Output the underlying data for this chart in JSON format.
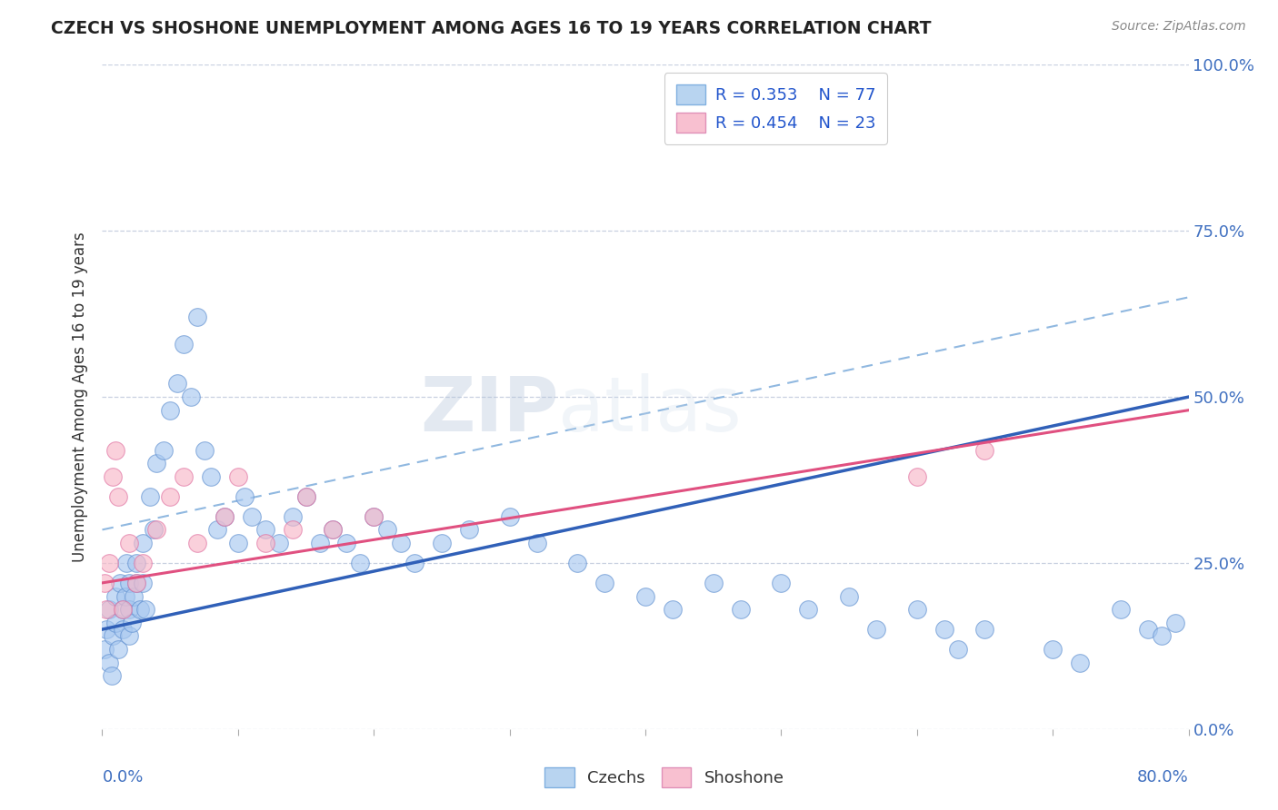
{
  "title": "CZECH VS SHOSHONE UNEMPLOYMENT AMONG AGES 16 TO 19 YEARS CORRELATION CHART",
  "source": "Source: ZipAtlas.com",
  "ylabel": "Unemployment Among Ages 16 to 19 years",
  "ytick_labels": [
    "0.0%",
    "25.0%",
    "50.0%",
    "75.0%",
    "100.0%"
  ],
  "ytick_values": [
    0,
    25,
    50,
    75,
    100
  ],
  "xlim": [
    0,
    80
  ],
  "ylim": [
    0,
    100
  ],
  "legend_r_czech": "R = 0.353",
  "legend_n_czech": "N = 77",
  "legend_r_shoshone": "R = 0.454",
  "legend_n_shoshone": "N = 23",
  "czech_dot_color": "#a8c8f0",
  "czech_dot_edge": "#6090d0",
  "shoshone_dot_color": "#f8b8c8",
  "shoshone_dot_edge": "#e070a0",
  "czech_line_color": "#3060b8",
  "shoshone_line_color": "#e05080",
  "dashed_line_color": "#90b8e0",
  "background_color": "#ffffff",
  "watermark": "ZIPatlas",
  "grid_color": "#c8d0e0",
  "czechs_x": [
    0.2,
    0.3,
    0.5,
    0.5,
    0.7,
    0.8,
    1.0,
    1.0,
    1.2,
    1.3,
    1.5,
    1.5,
    1.7,
    1.8,
    2.0,
    2.0,
    2.0,
    2.2,
    2.3,
    2.5,
    2.5,
    2.8,
    3.0,
    3.0,
    3.2,
    3.5,
    3.8,
    4.0,
    4.5,
    5.0,
    5.5,
    6.0,
    6.5,
    7.0,
    7.5,
    8.0,
    8.5,
    9.0,
    10.0,
    10.5,
    11.0,
    12.0,
    13.0,
    14.0,
    15.0,
    16.0,
    17.0,
    18.0,
    19.0,
    20.0,
    21.0,
    22.0,
    23.0,
    25.0,
    27.0,
    30.0,
    32.0,
    35.0,
    37.0,
    40.0,
    42.0,
    45.0,
    47.0,
    50.0,
    52.0,
    55.0,
    57.0,
    60.0,
    62.0,
    63.0,
    65.0,
    70.0,
    72.0,
    75.0,
    77.0,
    78.0,
    79.0
  ],
  "czechs_y": [
    12,
    15,
    18,
    10,
    8,
    14,
    16,
    20,
    12,
    22,
    15,
    18,
    20,
    25,
    14,
    18,
    22,
    16,
    20,
    22,
    25,
    18,
    28,
    22,
    18,
    35,
    30,
    40,
    42,
    48,
    52,
    58,
    50,
    62,
    42,
    38,
    30,
    32,
    28,
    35,
    32,
    30,
    28,
    32,
    35,
    28,
    30,
    28,
    25,
    32,
    30,
    28,
    25,
    28,
    30,
    32,
    28,
    25,
    22,
    20,
    18,
    22,
    18,
    22,
    18,
    20,
    15,
    18,
    15,
    12,
    15,
    12,
    10,
    18,
    15,
    14,
    16
  ],
  "shoshone_x": [
    0.2,
    0.3,
    0.5,
    0.8,
    1.0,
    1.2,
    1.5,
    2.0,
    2.5,
    3.0,
    4.0,
    5.0,
    6.0,
    7.0,
    9.0,
    10.0,
    12.0,
    14.0,
    15.0,
    17.0,
    20.0,
    60.0,
    65.0
  ],
  "shoshone_y": [
    22,
    18,
    25,
    38,
    42,
    35,
    18,
    28,
    22,
    25,
    30,
    35,
    38,
    28,
    32,
    38,
    28,
    30,
    35,
    30,
    32,
    38,
    42
  ],
  "czech_line_x0": 0,
  "czech_line_y0": 15,
  "czech_line_x1": 80,
  "czech_line_y1": 50,
  "shoshone_line_x0": 0,
  "shoshone_line_y0": 22,
  "shoshone_line_x1": 80,
  "shoshone_line_y1": 48,
  "dashed_line_x0": 0,
  "dashed_line_y0": 30,
  "dashed_line_x1": 80,
  "dashed_line_y1": 65
}
